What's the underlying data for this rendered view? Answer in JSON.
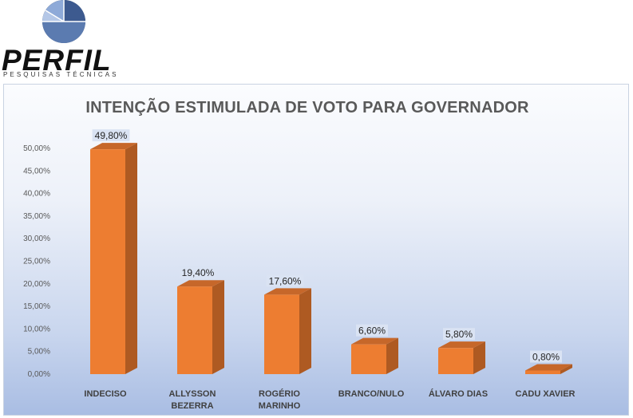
{
  "header": {
    "brand_name": "PERFIL",
    "brand_tagline": "PESQUISAS TÉCNICAS"
  },
  "colors": {
    "bar_front": "#ed7d31",
    "bar_side": "#ae5a22",
    "bar_top": "#c6672a",
    "label_bg": "#dae3f3",
    "logo_blue": "#44546a"
  },
  "chart_data": {
    "type": "bar",
    "title": "INTENÇÃO ESTIMULADA DE VOTO PARA GOVERNADOR",
    "categories": [
      [
        "INDECISO"
      ],
      [
        "ALLYSSON",
        "BEZERRA"
      ],
      [
        "ROGÉRIO",
        "MARINHO"
      ],
      [
        "BRANCO/NULO"
      ],
      [
        "ÁLVARO DIAS"
      ],
      [
        "CADU XAVIER"
      ]
    ],
    "values": [
      49.8,
      19.4,
      17.6,
      6.6,
      5.8,
      0.8
    ],
    "data_labels": [
      "49,80%",
      "19,40%",
      "17,60%",
      "6,60%",
      "5,80%",
      "0,80%"
    ],
    "y_ticks": [
      "0,00%",
      "5,00%",
      "10,00%",
      "15,00%",
      "20,00%",
      "25,00%",
      "30,00%",
      "35,00%",
      "40,00%",
      "45,00%",
      "50,00%"
    ],
    "ylim": [
      0,
      50
    ],
    "legend": "none",
    "style": "3d-column"
  }
}
